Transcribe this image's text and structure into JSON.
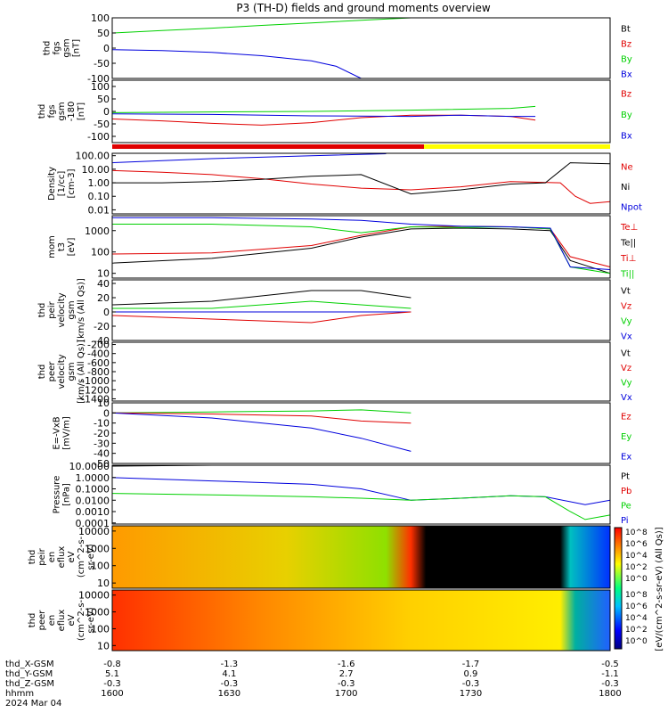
{
  "title": "P3 (TH-D) fields and ground moments overview",
  "colors": {
    "black": "#000000",
    "red": "#e00000",
    "green": "#00d000",
    "blue": "#0000dd",
    "yellow": "#ffff00"
  },
  "chart_data": [
    {
      "type": "line",
      "id": "fgs",
      "ylabel": [
        "thd",
        "fgs",
        "gsm",
        "[nT]"
      ],
      "ylim": [
        -100,
        100
      ],
      "yticks": [
        100,
        50,
        0,
        -50,
        -100
      ],
      "legend": [
        {
          "text": "Bt",
          "color": "black"
        },
        {
          "text": "Bz",
          "color": "red"
        },
        {
          "text": "By",
          "color": "green"
        },
        {
          "text": "Bx",
          "color": "blue"
        }
      ],
      "series": [
        {
          "name": "By",
          "color": "green",
          "x": [
            0,
            0.1,
            0.2,
            0.3,
            0.4,
            0.5,
            0.6,
            0.65,
            0.88
          ],
          "y": [
            50,
            58,
            66,
            75,
            83,
            92,
            100,
            100,
            100
          ]
        },
        {
          "name": "Bx",
          "color": "blue",
          "x": [
            0,
            0.1,
            0.2,
            0.3,
            0.4,
            0.45,
            0.5
          ],
          "y": [
            -5,
            -8,
            -14,
            -25,
            -42,
            -60,
            -100
          ]
        }
      ]
    },
    {
      "type": "line",
      "id": "fgs_dsl",
      "ylabel": [
        "thd",
        "fgs",
        "gsm",
        "-180",
        "[nT]"
      ],
      "ylim": [
        -125,
        125
      ],
      "yticks": [
        100,
        50,
        0,
        -50,
        -100
      ],
      "legend": [
        {
          "text": "Bz",
          "color": "red"
        },
        {
          "text": "By",
          "color": "green"
        },
        {
          "text": "Bx",
          "color": "blue"
        }
      ],
      "series": [
        {
          "name": "Bz",
          "color": "red",
          "x": [
            0,
            0.1,
            0.2,
            0.3,
            0.4,
            0.5,
            0.6,
            0.7,
            0.8,
            0.85
          ],
          "y": [
            -30,
            -38,
            -48,
            -55,
            -45,
            -25,
            -15,
            -15,
            -20,
            -35
          ]
        },
        {
          "name": "By",
          "color": "green",
          "x": [
            0,
            0.2,
            0.4,
            0.6,
            0.8,
            0.85
          ],
          "y": [
            -5,
            -2,
            0,
            5,
            12,
            20
          ]
        },
        {
          "name": "Bx",
          "color": "blue",
          "x": [
            0,
            0.2,
            0.4,
            0.6,
            0.7,
            0.8,
            0.85
          ],
          "y": [
            -10,
            -12,
            -18,
            -20,
            -15,
            -20,
            -20
          ]
        }
      ]
    },
    {
      "type": "line",
      "id": "density",
      "log": true,
      "ylabel": [
        "Density",
        "[1/cc]",
        "[cm-3]"
      ],
      "ylim": [
        0.005,
        150
      ],
      "yticks": [
        "100.00",
        "10.00",
        "1.00",
        "0.10",
        "0.01"
      ],
      "ytick_values": [
        100,
        10,
        1,
        0.1,
        0.01
      ],
      "legend": [
        {
          "text": "Ne",
          "color": "red"
        },
        {
          "text": "Ni",
          "color": "black"
        },
        {
          "text": "Npot",
          "color": "blue"
        }
      ],
      "series": [
        {
          "name": "Ne",
          "color": "red",
          "x": [
            0,
            0.1,
            0.2,
            0.3,
            0.4,
            0.5,
            0.6,
            0.7,
            0.8,
            0.9,
            0.93,
            0.96,
            1
          ],
          "y": [
            8,
            6,
            4,
            2,
            0.8,
            0.4,
            0.3,
            0.5,
            1.2,
            1,
            0.1,
            0.03,
            0.04
          ]
        },
        {
          "name": "Ni",
          "color": "black",
          "x": [
            0,
            0.1,
            0.2,
            0.3,
            0.4,
            0.5,
            0.6,
            0.7,
            0.8,
            0.87,
            0.92,
            1
          ],
          "y": [
            1,
            1,
            1.2,
            1.8,
            3,
            4,
            0.15,
            0.3,
            0.8,
            1,
            30,
            25
          ]
        },
        {
          "name": "Npot",
          "color": "blue",
          "x": [
            0,
            0.2,
            0.4,
            0.55
          ],
          "y": [
            30,
            60,
            100,
            140
          ]
        }
      ]
    },
    {
      "type": "line",
      "id": "temp",
      "log": true,
      "ylabel": [
        "mom",
        "t3",
        "[eV]"
      ],
      "ylim": [
        6,
        5000
      ],
      "yticks": [
        "1000",
        "100",
        "10"
      ],
      "ytick_values": [
        1000,
        100,
        10
      ],
      "legend": [
        {
          "text": "Te⊥",
          "color": "red"
        },
        {
          "text": "Te||",
          "color": "black"
        },
        {
          "text": "Ti⊥",
          "color": "red"
        },
        {
          "text": "Ti||",
          "color": "green"
        }
      ],
      "series": [
        {
          "name": "Te⊥",
          "color": "red",
          "x": [
            0,
            0.2,
            0.4,
            0.5,
            0.6,
            0.7,
            0.8,
            0.88,
            0.92,
            1
          ],
          "y": [
            80,
            90,
            200,
            600,
            1500,
            1600,
            1500,
            1200,
            60,
            20
          ]
        },
        {
          "name": "Te||",
          "color": "black",
          "x": [
            0,
            0.2,
            0.4,
            0.5,
            0.6,
            0.7,
            0.8,
            0.88,
            0.92,
            1
          ],
          "y": [
            30,
            50,
            150,
            500,
            1200,
            1300,
            1200,
            1000,
            40,
            10
          ]
        },
        {
          "name": "Ti||",
          "color": "green",
          "x": [
            0,
            0.2,
            0.4,
            0.5,
            0.6,
            0.7,
            0.8,
            0.88,
            0.92,
            1
          ],
          "y": [
            2000,
            2000,
            1500,
            800,
            1500,
            1400,
            1500,
            1200,
            20,
            10
          ]
        },
        {
          "name": "Ti⊥",
          "color": "blue",
          "x": [
            0,
            0.2,
            0.4,
            0.5,
            0.6,
            0.7,
            0.8,
            0.88,
            0.92,
            1
          ],
          "y": [
            4000,
            4000,
            3500,
            3000,
            2000,
            1600,
            1500,
            1300,
            20,
            15
          ]
        }
      ]
    },
    {
      "type": "line",
      "id": "vel_i",
      "ylabel": [
        "thd",
        "peir",
        "velocity",
        "gsm",
        "[km/s (All Qs)]"
      ],
      "ylim": [
        -40,
        45
      ],
      "yticks": [
        40,
        20,
        0,
        -20,
        -40
      ],
      "legend": [
        {
          "text": "Vt",
          "color": "black"
        },
        {
          "text": "Vz",
          "color": "red"
        },
        {
          "text": "Vy",
          "color": "green"
        },
        {
          "text": "Vx",
          "color": "blue"
        }
      ],
      "series": [
        {
          "name": "Vt",
          "color": "black",
          "x": [
            0,
            0.2,
            0.4,
            0.5,
            0.6
          ],
          "y": [
            10,
            15,
            30,
            30,
            20
          ]
        },
        {
          "name": "Vy",
          "color": "green",
          "x": [
            0,
            0.2,
            0.4,
            0.5,
            0.6
          ],
          "y": [
            5,
            5,
            15,
            10,
            5
          ]
        },
        {
          "name": "Vx",
          "color": "blue",
          "x": [
            0,
            0.2,
            0.4,
            0.5,
            0.6
          ],
          "y": [
            0,
            0,
            0,
            0,
            0
          ]
        },
        {
          "name": "Vz",
          "color": "red",
          "x": [
            0,
            0.2,
            0.4,
            0.5,
            0.6
          ],
          "y": [
            -5,
            -10,
            -15,
            -5,
            0
          ]
        }
      ]
    },
    {
      "type": "line",
      "id": "vel_e",
      "ylabel": [
        "thd",
        "peer",
        "velocity",
        "gsm",
        "[km/s (All Qs)]"
      ],
      "ylim": [
        -1450,
        -150
      ],
      "yticks": [
        -200,
        -400,
        -600,
        -800,
        -1000,
        -1200,
        -1400
      ],
      "legend": [
        {
          "text": "Vt",
          "color": "black"
        },
        {
          "text": "Vz",
          "color": "red"
        },
        {
          "text": "Vy",
          "color": "green"
        },
        {
          "text": "Vx",
          "color": "blue"
        }
      ],
      "series": []
    },
    {
      "type": "line",
      "id": "efield",
      "ylabel": [
        "E=-VxB",
        "[mV/m]"
      ],
      "ylim": [
        -50,
        10
      ],
      "yticks": [
        10,
        0,
        -10,
        -20,
        -30,
        -40,
        -50
      ],
      "legend": [
        {
          "text": "Ez",
          "color": "red"
        },
        {
          "text": "Ey",
          "color": "green"
        },
        {
          "text": "Ex",
          "color": "blue"
        }
      ],
      "series": [
        {
          "name": "Ey",
          "color": "green",
          "x": [
            0,
            0.2,
            0.4,
            0.5,
            0.6
          ],
          "y": [
            0,
            1,
            2,
            3,
            0
          ]
        },
        {
          "name": "Ez",
          "color": "red",
          "x": [
            0,
            0.2,
            0.4,
            0.5,
            0.6
          ],
          "y": [
            0,
            -1,
            -3,
            -8,
            -10
          ]
        },
        {
          "name": "Ex",
          "color": "blue",
          "x": [
            0,
            0.2,
            0.4,
            0.5,
            0.6
          ],
          "y": [
            0,
            -5,
            -15,
            -25,
            -38
          ]
        }
      ]
    },
    {
      "type": "line",
      "id": "pressure",
      "log": true,
      "ylabel": [
        "Pressure",
        "[nPa]"
      ],
      "ylim": [
        8e-05,
        12
      ],
      "yticks": [
        "10.0000",
        "1.0000",
        "0.1000",
        "0.0100",
        "0.0010",
        "0.0001"
      ],
      "ytick_values": [
        10,
        1,
        0.1,
        0.01,
        0.001,
        0.0001
      ],
      "legend": [
        {
          "text": "Pt",
          "color": "black"
        },
        {
          "text": "Pb",
          "color": "red"
        },
        {
          "text": "Pe",
          "color": "green"
        },
        {
          "text": "Pi",
          "color": "blue"
        }
      ],
      "series": [
        {
          "name": "Pt",
          "color": "black",
          "x": [
            0,
            0.2,
            0.45
          ],
          "y": [
            10,
            15,
            20
          ]
        },
        {
          "name": "Pi",
          "color": "blue",
          "x": [
            0,
            0.2,
            0.4,
            0.5,
            0.6,
            0.7,
            0.8,
            0.87,
            0.95,
            1
          ],
          "y": [
            1,
            0.5,
            0.25,
            0.1,
            0.01,
            0.015,
            0.025,
            0.02,
            0.004,
            0.01
          ]
        },
        {
          "name": "Pe",
          "color": "green",
          "x": [
            0,
            0.2,
            0.4,
            0.5,
            0.6,
            0.7,
            0.8,
            0.87,
            0.92,
            0.95,
            1
          ],
          "y": [
            0.04,
            0.03,
            0.02,
            0.015,
            0.01,
            0.015,
            0.025,
            0.02,
            0.001,
            0.0002,
            0.0005
          ]
        }
      ]
    },
    {
      "type": "heatmap",
      "id": "eflux_i",
      "ylabel": [
        "thd",
        "peir",
        "en",
        "eflux",
        "eV",
        "(cm^2-s-",
        "sr-eV)"
      ],
      "ylim": [
        5,
        20000
      ],
      "yticks": [
        "10000",
        "1000",
        "100",
        "10"
      ],
      "ytick_values": [
        10000,
        1000,
        100,
        10
      ]
    },
    {
      "type": "heatmap",
      "id": "eflux_e",
      "ylabel": [
        "thd",
        "peer",
        "en",
        "eflux",
        "eV",
        "(cm^2-s-",
        "sr-eV)"
      ],
      "ylim": [
        5,
        20000
      ],
      "yticks": [
        "10000",
        "1000",
        "100",
        "10"
      ],
      "ytick_values": [
        10000,
        1000,
        100,
        10
      ]
    }
  ],
  "colorbar": {
    "label": "[eV/(cm^2-s-sr-eV) (All Qs)]",
    "ticks_i": [
      "10^8",
      "10^6",
      "10^4",
      "10^2",
      "10^0"
    ],
    "ticks_e": [
      "10^8",
      "10^6",
      "10^4",
      "10^2",
      "10^0"
    ]
  },
  "x_axis": {
    "rows": [
      {
        "label": "thd_X-GSM",
        "values": [
          "-0.8",
          "-1.3",
          "-1.6",
          "-1.7",
          "-0.5"
        ]
      },
      {
        "label": "thd_Y-GSM",
        "values": [
          "5.1",
          "4.1",
          "2.7",
          "0.9",
          "-1.1"
        ]
      },
      {
        "label": "thd_Z-GSM",
        "values": [
          "-0.3",
          "-0.3",
          "-0.3",
          "-0.3",
          "-0.3"
        ]
      },
      {
        "label": "hhmm",
        "values": [
          "1600",
          "1630",
          "1700",
          "1730",
          "1800"
        ]
      }
    ],
    "date": "2024 Mar 04"
  }
}
